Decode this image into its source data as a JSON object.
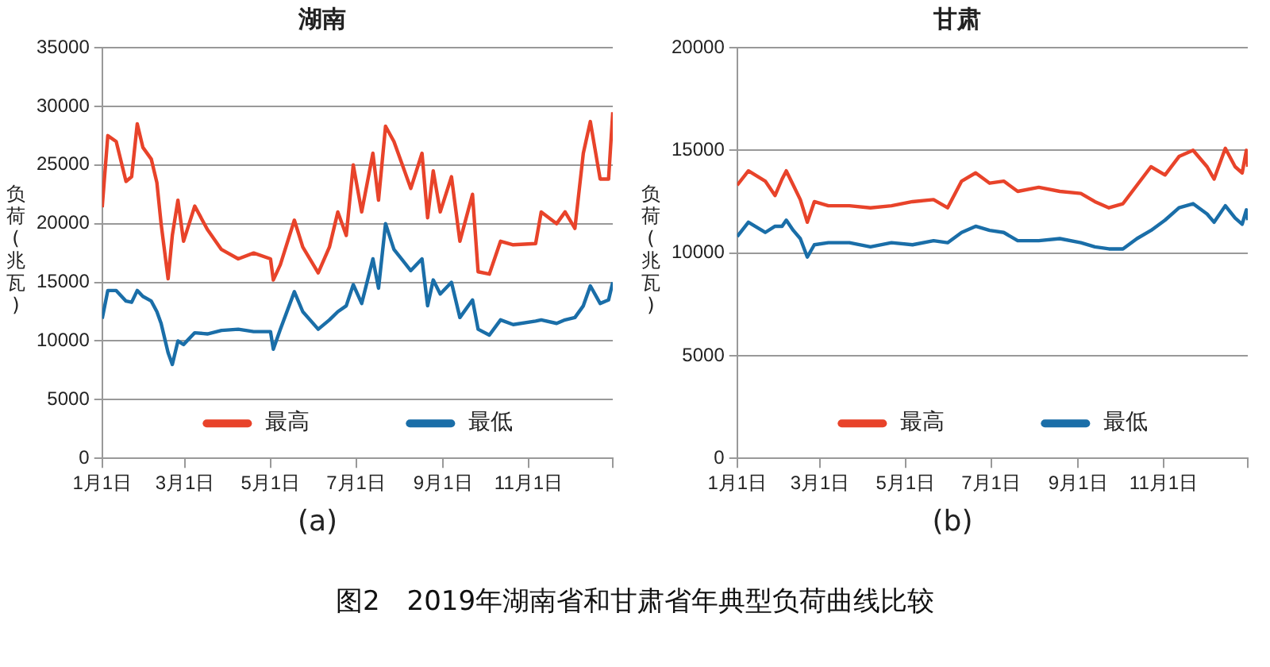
{
  "chart_data": [
    {
      "type": "line",
      "title": "湖南",
      "ylabel": "负荷(兆瓦)",
      "annotations": [
        "(a)",
        "图2　2019年湖南省和甘肃省年典型负荷曲线比较"
      ],
      "x": [
        "--01-01",
        "--01-05",
        "--01-11",
        "--01-18",
        "--01-22",
        "--01-26",
        "--01-30",
        "--02-05",
        "--02-09",
        "--02-12",
        "--02-17",
        "--02-20",
        "--02-24",
        "--02-28",
        "--03-08",
        "--03-17",
        "--03-27",
        "--04-08",
        "--04-19",
        "--05-01",
        "--05-03",
        "--05-08",
        "--05-18",
        "--05-24",
        "--06-04",
        "--06-12",
        "--06-18",
        "--06-24",
        "--06-29",
        "--07-05",
        "--07-13",
        "--07-17",
        "--07-22",
        "--07-28",
        "--08-09",
        "--08-17",
        "--08-21",
        "--08-25",
        "--08-30",
        "--09-07",
        "--09-13",
        "--09-22",
        "--09-26",
        "--10-04",
        "--10-12",
        "--10-21",
        "--11-06",
        "--11-10",
        "--11-21",
        "--11-27",
        "--12-04",
        "--12-10",
        "--12-15",
        "--12-22",
        "--12-28",
        "--12-31"
      ],
      "series": [
        {
          "name": "最高",
          "color": "#e8432a",
          "values": [
            21400,
            27500,
            27000,
            23600,
            24000,
            28500,
            26500,
            25500,
            23500,
            20000,
            15300,
            19000,
            22000,
            18500,
            21500,
            19500,
            17800,
            17000,
            17500,
            17000,
            15200,
            16500,
            20300,
            18000,
            15800,
            18000,
            21000,
            19000,
            25000,
            21000,
            26000,
            22000,
            28300,
            27000,
            23000,
            26000,
            20500,
            24500,
            21000,
            24000,
            18500,
            22500,
            15900,
            15700,
            18500,
            18200,
            18300,
            21000,
            20000,
            21000,
            19600,
            26000,
            28700,
            23800,
            23800,
            29500
          ]
        },
        {
          "name": "最低",
          "color": "#1a6ea8",
          "values": [
            11900,
            14300,
            14300,
            13400,
            13300,
            14300,
            13800,
            13400,
            12500,
            11500,
            9000,
            8000,
            10000,
            9700,
            10700,
            10600,
            10900,
            11000,
            10800,
            10800,
            9300,
            11000,
            14200,
            12500,
            11000,
            11800,
            12500,
            13000,
            14800,
            13200,
            17000,
            14500,
            20000,
            17800,
            16000,
            17000,
            13000,
            15200,
            14000,
            15000,
            12000,
            13500,
            11000,
            10500,
            11800,
            11400,
            11700,
            11800,
            11500,
            11800,
            12000,
            13000,
            14700,
            13200,
            13500,
            15000
          ]
        }
      ],
      "xlim": [
        "--01-01",
        "--12-31"
      ],
      "xticks": [
        {
          "value": "--01-01",
          "label": "1月1日"
        },
        {
          "value": "--03-01",
          "label": "3月1日"
        },
        {
          "value": "--05-01",
          "label": "5月1日"
        },
        {
          "value": "--07-01",
          "label": "7月1日"
        },
        {
          "value": "--09-01",
          "label": "9月1日"
        },
        {
          "value": "--11-01",
          "label": "11月1日"
        },
        {
          "value": "--12-31",
          "label": null
        }
      ],
      "ylim": [
        0,
        35000
      ],
      "yticks": [
        0,
        5000,
        10000,
        15000,
        20000,
        25000,
        30000,
        35000
      ],
      "grid": "y",
      "legend": "bottom",
      "marker": "none",
      "line_style": "solid"
    },
    {
      "type": "line",
      "title": "甘肃",
      "ylabel": "负荷(兆瓦)",
      "annotations": [
        "(b)"
      ],
      "x": [
        "--01-01",
        "--01-09",
        "--01-21",
        "--01-28",
        "--02-02",
        "--02-05",
        "--02-10",
        "--02-15",
        "--02-20",
        "--02-25",
        "--03-07",
        "--03-22",
        "--04-06",
        "--04-21",
        "--05-06",
        "--05-21",
        "--05-31",
        "--06-10",
        "--06-20",
        "--06-30",
        "--07-10",
        "--07-20",
        "--08-04",
        "--08-19",
        "--09-03",
        "--09-13",
        "--09-23",
        "--10-03",
        "--10-13",
        "--10-23",
        "--11-02",
        "--11-12",
        "--11-22",
        "--12-02",
        "--12-07",
        "--12-15",
        "--12-22",
        "--12-27",
        "--12-30",
        "--12-31"
      ],
      "series": [
        {
          "name": "最高",
          "color": "#e8432a",
          "values": [
            13300,
            14000,
            13500,
            12800,
            13600,
            14000,
            13300,
            12600,
            11500,
            12500,
            12300,
            12300,
            12200,
            12300,
            12500,
            12600,
            12200,
            13500,
            13900,
            13400,
            13500,
            13000,
            13200,
            13000,
            12900,
            12500,
            12200,
            12400,
            13300,
            14200,
            13800,
            14700,
            15000,
            14200,
            13600,
            15100,
            14200,
            13900,
            15000,
            14200
          ]
        },
        {
          "name": "最低",
          "color": "#1a6ea8",
          "values": [
            10800,
            11500,
            11000,
            11300,
            11300,
            11600,
            11100,
            10700,
            9800,
            10400,
            10500,
            10500,
            10300,
            10500,
            10400,
            10600,
            10500,
            11000,
            11300,
            11100,
            11000,
            10600,
            10600,
            10700,
            10500,
            10300,
            10200,
            10200,
            10700,
            11100,
            11600,
            12200,
            12400,
            11900,
            11500,
            12300,
            11700,
            11400,
            12100,
            11600
          ]
        }
      ],
      "xlim": [
        "--01-01",
        "--12-31"
      ],
      "xticks": [
        {
          "value": "--01-01",
          "label": "1月1日"
        },
        {
          "value": "--03-01",
          "label": "3月1日"
        },
        {
          "value": "--05-01",
          "label": "5月1日"
        },
        {
          "value": "--07-01",
          "label": "7月1日"
        },
        {
          "value": "--09-01",
          "label": "9月1日"
        },
        {
          "value": "--11-01",
          "label": "11月1日"
        },
        {
          "value": "--12-31",
          "label": null
        }
      ],
      "ylim": [
        0,
        20000
      ],
      "yticks": [
        0,
        5000,
        10000,
        15000,
        20000
      ],
      "grid": "y",
      "legend": "bottom",
      "marker": "none",
      "line_style": "solid"
    }
  ]
}
